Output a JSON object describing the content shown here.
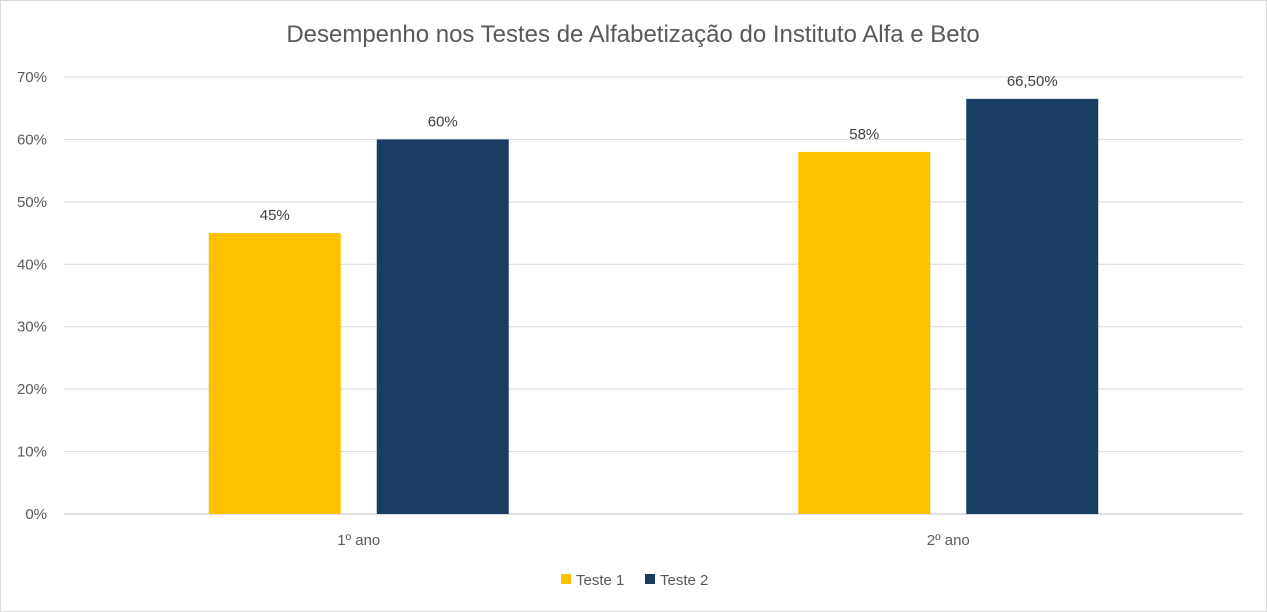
{
  "chart_data": {
    "type": "bar",
    "title": "Desempenho nos Testes de Alfabetização do Instituto Alfa e Beto",
    "categories": [
      "1º ano",
      "2º ano"
    ],
    "series": [
      {
        "name": "Teste 1",
        "values": [
          45,
          58
        ],
        "labels": [
          "45%",
          "58%"
        ],
        "color": "#FFC000"
      },
      {
        "name": "Teste 2",
        "values": [
          60,
          66.5
        ],
        "labels": [
          "60%",
          "66,50%"
        ],
        "color": "#1A3D63"
      }
    ],
    "ylim": [
      0,
      70
    ],
    "yticks": [
      "0%",
      "10%",
      "20%",
      "30%",
      "40%",
      "50%",
      "60%",
      "70%"
    ],
    "grid": true,
    "legend": "bottom"
  }
}
